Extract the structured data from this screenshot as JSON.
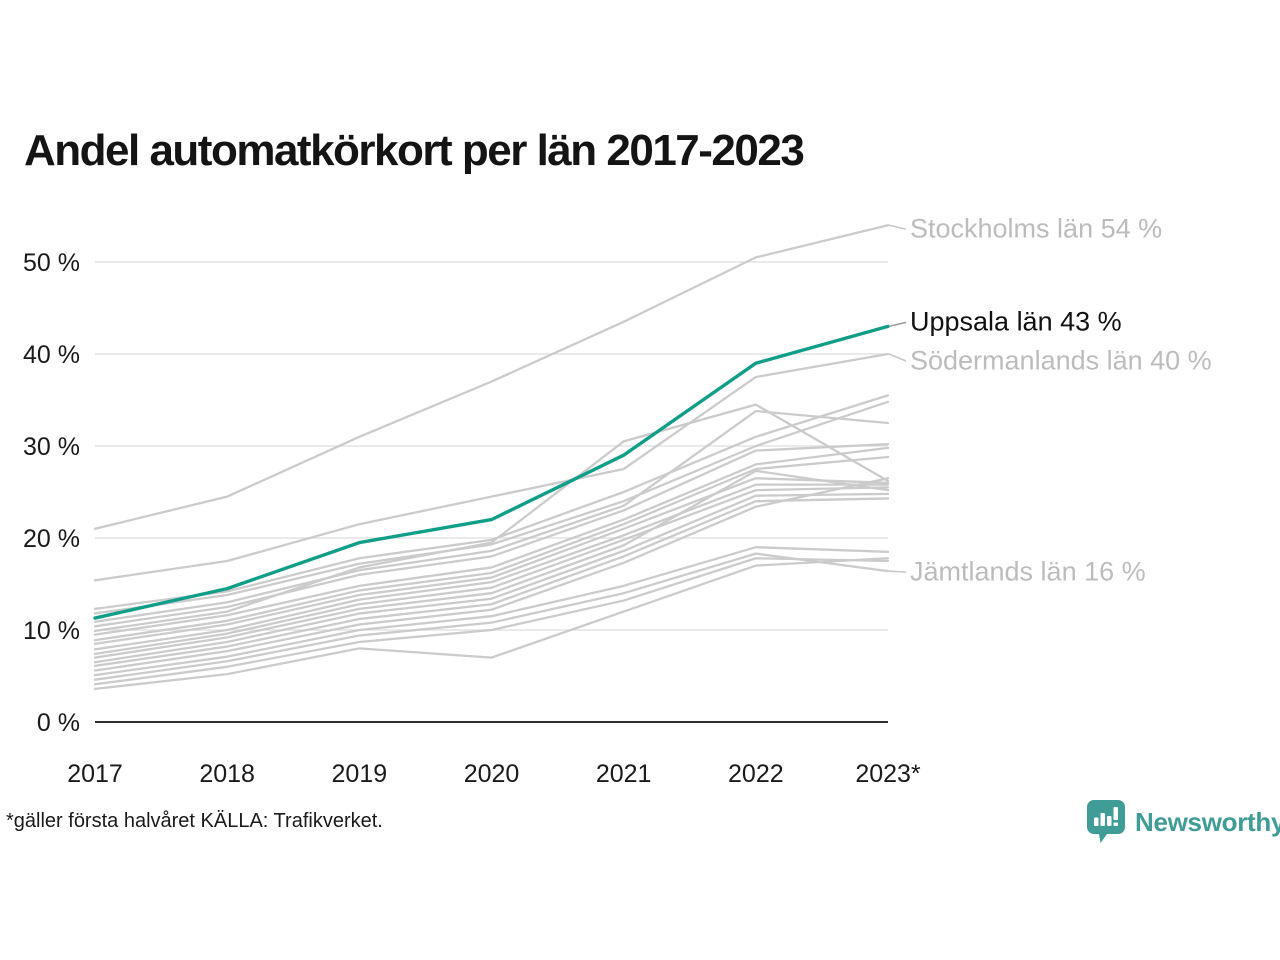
{
  "page": {
    "title": "Andel automatkörkort per län 2017-2023",
    "footnote": "*gäller första halvåret KÄLLA: Trafikverket.",
    "brand": {
      "name": "Newsworthy",
      "icon": "newsworthy-logo-icon",
      "color": "#3f9c96"
    }
  },
  "chart_data": {
    "type": "line",
    "title": "Andel automatkörkort per län 2017-2023",
    "xlabel": "",
    "ylabel": "",
    "unit": "%",
    "x_labels": [
      "2017",
      "2018",
      "2019",
      "2020",
      "2021",
      "2022",
      "2023*"
    ],
    "ylim": [
      0,
      57
    ],
    "grid": true,
    "y_ticks": [
      {
        "value": 0,
        "label": "0 %"
      },
      {
        "value": 10,
        "label": "10 %"
      },
      {
        "value": 20,
        "label": "20 %"
      },
      {
        "value": 30,
        "label": "30 %"
      },
      {
        "value": 40,
        "label": "40 %"
      },
      {
        "value": 50,
        "label": "50 %"
      }
    ],
    "colors": {
      "highlight": "#119e88",
      "line_gray": "#cbcbcb",
      "grid": "#e3e3e3",
      "axis": "#111111",
      "label_gray": "#bcbcbc",
      "label_dark": "#111111"
    },
    "series": [
      {
        "name": "Stockholms län",
        "highlight": false,
        "values": [
          21.0,
          24.5,
          31.0,
          37.0,
          43.5,
          50.5,
          54.0
        ]
      },
      {
        "name": "Södermanlands län",
        "highlight": false,
        "values": [
          15.4,
          17.5,
          21.5,
          24.5,
          27.5,
          37.5,
          40.0
        ]
      },
      {
        "name": "county-04",
        "highlight": false,
        "values": [
          12.3,
          14.2,
          17.8,
          19.8,
          25.0,
          31.0,
          35.5
        ]
      },
      {
        "name": "county-05",
        "highlight": false,
        "values": [
          11.8,
          13.8,
          17.2,
          19.3,
          24.0,
          30.0,
          34.8
        ]
      },
      {
        "name": "county-06",
        "highlight": false,
        "values": [
          10.9,
          13.0,
          16.5,
          18.6,
          23.5,
          33.8,
          32.5
        ]
      },
      {
        "name": "county-07",
        "highlight": false,
        "values": [
          10.4,
          12.5,
          16.0,
          18.0,
          23.0,
          29.5,
          30.2
        ]
      },
      {
        "name": "county-08",
        "highlight": false,
        "values": [
          9.9,
          12.0,
          16.8,
          19.5,
          30.5,
          34.5,
          26.2
        ]
      },
      {
        "name": "county-09",
        "highlight": false,
        "values": [
          9.5,
          11.6,
          14.8,
          16.8,
          22.0,
          28.0,
          29.8
        ]
      },
      {
        "name": "county-10",
        "highlight": false,
        "values": [
          8.9,
          11.0,
          14.3,
          16.2,
          21.5,
          27.5,
          28.8
        ]
      },
      {
        "name": "county-11",
        "highlight": false,
        "values": [
          8.5,
          10.6,
          13.8,
          15.7,
          21.0,
          26.5,
          26.0
        ]
      },
      {
        "name": "county-12",
        "highlight": false,
        "values": [
          7.9,
          10.0,
          13.3,
          15.2,
          20.3,
          25.8,
          25.8
        ]
      },
      {
        "name": "county-13",
        "highlight": false,
        "values": [
          7.4,
          9.6,
          12.8,
          14.6,
          19.8,
          25.2,
          25.5
        ]
      },
      {
        "name": "county-14",
        "highlight": false,
        "values": [
          7.0,
          9.2,
          12.3,
          14.0,
          19.2,
          27.3,
          25.2
        ]
      },
      {
        "name": "county-15",
        "highlight": false,
        "values": [
          6.5,
          8.7,
          11.8,
          13.4,
          18.6,
          24.6,
          24.8
        ]
      },
      {
        "name": "county-16",
        "highlight": false,
        "values": [
          6.1,
          8.2,
          11.2,
          12.8,
          18.0,
          24.0,
          24.3
        ]
      },
      {
        "name": "county-17",
        "highlight": false,
        "values": [
          5.6,
          7.7,
          10.6,
          12.2,
          17.3,
          23.4,
          26.5
        ]
      },
      {
        "name": "county-18",
        "highlight": false,
        "values": [
          5.1,
          7.1,
          10.0,
          11.5,
          14.8,
          19.0,
          18.5
        ]
      },
      {
        "name": "Jämtlands län",
        "highlight": false,
        "values": [
          4.6,
          6.6,
          9.4,
          10.8,
          14.0,
          18.3,
          16.4
        ]
      },
      {
        "name": "county-20",
        "highlight": false,
        "values": [
          4.1,
          6.0,
          8.7,
          10.0,
          13.2,
          17.8,
          17.5
        ]
      },
      {
        "name": "county-21",
        "highlight": false,
        "values": [
          3.6,
          5.2,
          8.0,
          7.0,
          12.0,
          17.0,
          17.8
        ]
      },
      {
        "name": "Uppsala län",
        "highlight": true,
        "values": [
          11.3,
          14.5,
          19.5,
          22.0,
          29.0,
          39.0,
          43.0
        ]
      }
    ],
    "annotations": [
      {
        "text": "Stockholms län 54 %",
        "value": 54.0,
        "dy": 4,
        "dark": false
      },
      {
        "text": "Uppsala län 43 %",
        "value": 43.0,
        "dy": -4,
        "dark": true
      },
      {
        "text": "Södermanlands län 40 %",
        "value": 40.0,
        "dy": 7,
        "dark": false
      },
      {
        "text": "Jämtlands län 16 %",
        "value": 16.4,
        "dy": 1,
        "dark": false
      }
    ],
    "legend_position": "none"
  }
}
